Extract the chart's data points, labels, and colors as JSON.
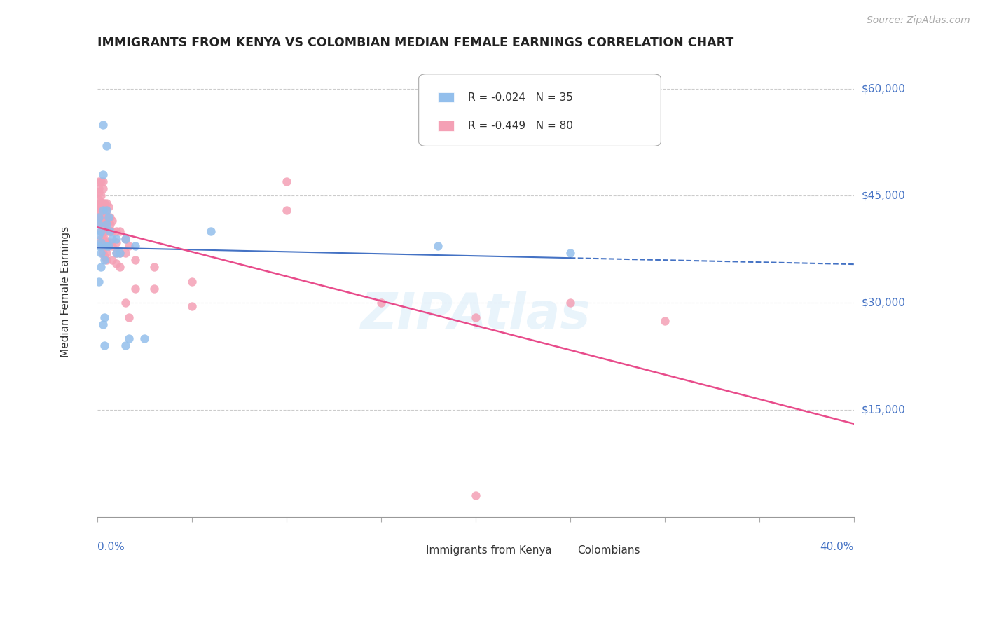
{
  "title": "IMMIGRANTS FROM KENYA VS COLOMBIAN MEDIAN FEMALE EARNINGS CORRELATION CHART",
  "source": "Source: ZipAtlas.com",
  "ylabel": "Median Female Earnings",
  "xmin": 0.0,
  "xmax": 0.4,
  "ymin": 0,
  "ymax": 63000,
  "legend_kenya_R": "-0.024",
  "legend_kenya_N": "35",
  "legend_colombia_R": "-0.449",
  "legend_colombia_N": "80",
  "color_kenya": "#93BFEC",
  "color_colombia": "#F4A0B5",
  "line_color_kenya": "#4472C4",
  "line_color_colombia": "#E84C8B",
  "background_color": "#FFFFFF",
  "watermark": "ZIPAtlas",
  "yticks": [
    0,
    15000,
    30000,
    45000,
    60000
  ],
  "kenya_points": [
    [
      0.001,
      42000
    ],
    [
      0.001,
      41000
    ],
    [
      0.001,
      39500
    ],
    [
      0.001,
      38000
    ],
    [
      0.002,
      40000
    ],
    [
      0.002,
      38500
    ],
    [
      0.002,
      37000
    ],
    [
      0.002,
      35000
    ],
    [
      0.003,
      55000
    ],
    [
      0.003,
      48000
    ],
    [
      0.003,
      43000
    ],
    [
      0.004,
      36000
    ],
    [
      0.004,
      28000
    ],
    [
      0.005,
      52000
    ],
    [
      0.005,
      43000
    ],
    [
      0.005,
      41000
    ],
    [
      0.005,
      38000
    ],
    [
      0.006,
      42000
    ],
    [
      0.006,
      38000
    ],
    [
      0.007,
      40000
    ],
    [
      0.008,
      39000
    ],
    [
      0.01,
      39000
    ],
    [
      0.01,
      37000
    ],
    [
      0.012,
      37000
    ],
    [
      0.015,
      39000
    ],
    [
      0.015,
      24000
    ],
    [
      0.017,
      25000
    ],
    [
      0.02,
      38000
    ],
    [
      0.025,
      25000
    ],
    [
      0.06,
      40000
    ],
    [
      0.18,
      38000
    ],
    [
      0.25,
      37000
    ],
    [
      0.003,
      27000
    ],
    [
      0.004,
      24000
    ],
    [
      0.001,
      33000
    ]
  ],
  "colombia_points": [
    [
      0.001,
      47000
    ],
    [
      0.001,
      46000
    ],
    [
      0.001,
      45500
    ],
    [
      0.001,
      44500
    ],
    [
      0.001,
      44000
    ],
    [
      0.001,
      43500
    ],
    [
      0.001,
      43000
    ],
    [
      0.001,
      42500
    ],
    [
      0.002,
      47000
    ],
    [
      0.002,
      45000
    ],
    [
      0.002,
      44000
    ],
    [
      0.002,
      43500
    ],
    [
      0.002,
      42000
    ],
    [
      0.002,
      41500
    ],
    [
      0.002,
      41000
    ],
    [
      0.002,
      40000
    ],
    [
      0.002,
      39000
    ],
    [
      0.002,
      38000
    ],
    [
      0.003,
      47000
    ],
    [
      0.003,
      46000
    ],
    [
      0.003,
      44000
    ],
    [
      0.003,
      43000
    ],
    [
      0.003,
      42000
    ],
    [
      0.003,
      41000
    ],
    [
      0.003,
      40000
    ],
    [
      0.003,
      39000
    ],
    [
      0.003,
      38500
    ],
    [
      0.003,
      37000
    ],
    [
      0.004,
      44000
    ],
    [
      0.004,
      43500
    ],
    [
      0.004,
      42500
    ],
    [
      0.004,
      41000
    ],
    [
      0.004,
      40000
    ],
    [
      0.004,
      39000
    ],
    [
      0.004,
      38000
    ],
    [
      0.004,
      36500
    ],
    [
      0.005,
      44000
    ],
    [
      0.005,
      43000
    ],
    [
      0.005,
      42000
    ],
    [
      0.005,
      40000
    ],
    [
      0.005,
      38500
    ],
    [
      0.005,
      37000
    ],
    [
      0.005,
      36000
    ],
    [
      0.006,
      43500
    ],
    [
      0.006,
      41500
    ],
    [
      0.006,
      40000
    ],
    [
      0.006,
      38000
    ],
    [
      0.007,
      42000
    ],
    [
      0.007,
      41000
    ],
    [
      0.007,
      40000
    ],
    [
      0.007,
      38500
    ],
    [
      0.008,
      41500
    ],
    [
      0.008,
      40000
    ],
    [
      0.008,
      38000
    ],
    [
      0.008,
      36000
    ],
    [
      0.01,
      40000
    ],
    [
      0.01,
      38500
    ],
    [
      0.01,
      37000
    ],
    [
      0.01,
      35500
    ],
    [
      0.012,
      40000
    ],
    [
      0.012,
      37000
    ],
    [
      0.012,
      35000
    ],
    [
      0.015,
      39000
    ],
    [
      0.015,
      37000
    ],
    [
      0.015,
      30000
    ],
    [
      0.017,
      38000
    ],
    [
      0.017,
      28000
    ],
    [
      0.02,
      36000
    ],
    [
      0.02,
      32000
    ],
    [
      0.03,
      35000
    ],
    [
      0.03,
      32000
    ],
    [
      0.05,
      33000
    ],
    [
      0.05,
      29500
    ],
    [
      0.1,
      47000
    ],
    [
      0.1,
      43000
    ],
    [
      0.15,
      30000
    ],
    [
      0.2,
      28000
    ],
    [
      0.25,
      30000
    ],
    [
      0.3,
      27500
    ],
    [
      0.2,
      3000
    ]
  ]
}
